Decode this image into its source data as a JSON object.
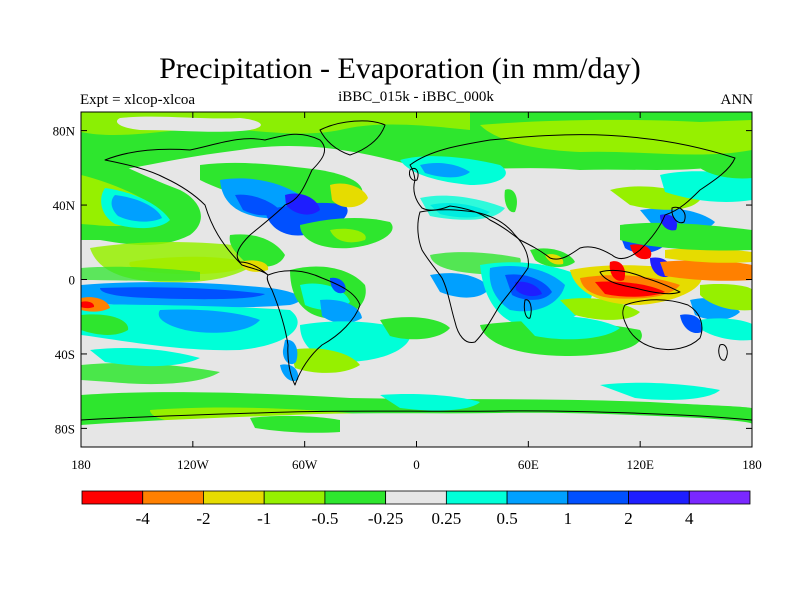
{
  "title": "Precipitation - Evaporation (in mm/day)",
  "subtitle_left": "Expt = xlcop-xlcoa",
  "subtitle_center": "iBBC_015k - iBBC_000k",
  "subtitle_right": "ANN",
  "map": {
    "x_ticks": [
      {
        "lon": -180,
        "label": "180"
      },
      {
        "lon": -120,
        "label": "120W"
      },
      {
        "lon": -60,
        "label": "60W"
      },
      {
        "lon": 0,
        "label": "0"
      },
      {
        "lon": 60,
        "label": "60E"
      },
      {
        "lon": 120,
        "label": "120E"
      },
      {
        "lon": 180,
        "label": "180"
      }
    ],
    "y_ticks": [
      {
        "lat": 80,
        "label": "80N"
      },
      {
        "lat": 40,
        "label": "40N"
      },
      {
        "lat": 0,
        "label": "0"
      },
      {
        "lat": -40,
        "label": "40S"
      },
      {
        "lat": -80,
        "label": "80S"
      }
    ],
    "lon_range": [
      -180,
      180
    ],
    "lat_range": [
      -90,
      90
    ]
  },
  "colorbar": {
    "colors": [
      "#ff0000",
      "#ff8000",
      "#e6dc00",
      "#96f000",
      "#2ee62e",
      "#e6e6e6",
      "#00ffd8",
      "#00a0ff",
      "#0050ff",
      "#1e1eff",
      "#7a28ff"
    ],
    "labels": [
      "-4",
      "-2",
      "-1",
      "-0.5",
      "-0.25",
      "0.25",
      "0.5",
      "1",
      "2",
      "4"
    ]
  }
}
